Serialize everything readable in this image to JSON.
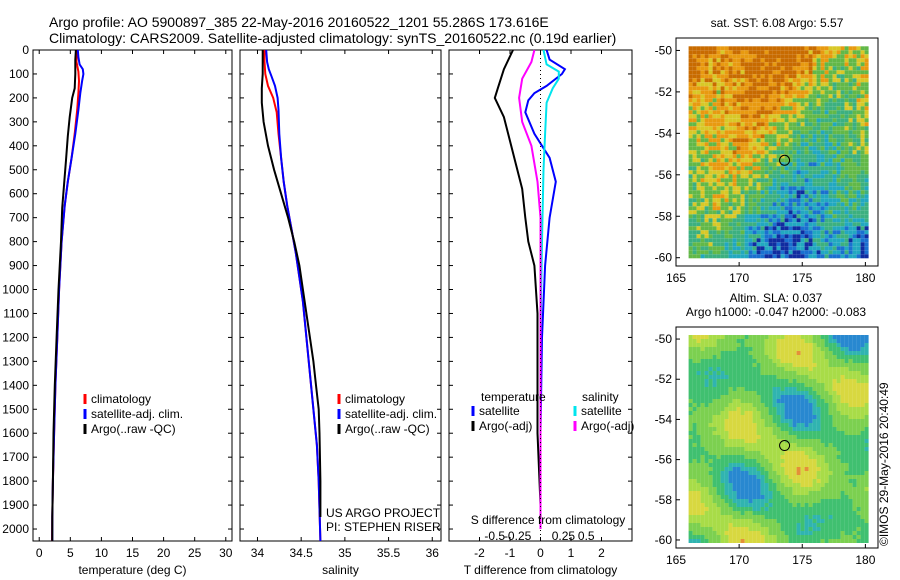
{
  "header": {
    "line1": "Argo profile: AO 5900897_385 22-May-2016 20160522_1201 55.286S 173.616E",
    "line2": "Climatology: CARS2009. Satellite-adjusted climatology: synTS_20160522.nc (0.19d earlier)"
  },
  "credit": "©IMOS 29-May-2016 20:40:49",
  "colors": {
    "climatology": "#ff0000",
    "satellite": "#0000ff",
    "argo": "#000000",
    "salinity_satellite": "#00e5ee",
    "salinity_argo": "#ff00ff"
  },
  "chart_data": [
    {
      "type": "line",
      "name": "temperature-profile",
      "xlabel": "temperature (deg C)",
      "ylabel": "",
      "xlim": [
        -1,
        31
      ],
      "ylim": [
        0,
        2050
      ],
      "y_inverted": true,
      "xticks": [
        0,
        5,
        10,
        15,
        20,
        25,
        30
      ],
      "xticklabels": [
        "0",
        "5",
        "10",
        "15",
        "20",
        "25",
        "30"
      ],
      "yticks": [
        0,
        100,
        200,
        300,
        400,
        500,
        600,
        700,
        800,
        900,
        1000,
        1100,
        1200,
        1300,
        1400,
        1500,
        1600,
        1700,
        1800,
        1900,
        2000
      ],
      "yticklabels": [
        "0",
        "100",
        "200",
        "300",
        "400",
        "500",
        "600",
        "700",
        "800",
        "900",
        "1000",
        "1100",
        "1200",
        "1300",
        "1400",
        "1500",
        "1600",
        "1700",
        "1800",
        "1900",
        "2000"
      ],
      "legend": [
        "climatology",
        "satellite-adj. clim.",
        "Argo(..raw -QC)"
      ],
      "series": [
        {
          "name": "climatology",
          "color_key": "climatology",
          "points": [
            [
              6.0,
              0
            ],
            [
              6.0,
              50
            ],
            [
              6.3,
              90
            ],
            [
              6.4,
              130
            ],
            [
              6.3,
              180
            ],
            [
              6.1,
              250
            ],
            [
              5.7,
              350
            ],
            [
              5.2,
              450
            ],
            [
              4.6,
              550
            ],
            [
              4.1,
              650
            ],
            [
              3.6,
              800
            ],
            [
              3.2,
              1000
            ],
            [
              2.9,
              1200
            ],
            [
              2.6,
              1400
            ],
            [
              2.4,
              1600
            ],
            [
              2.2,
              1800
            ],
            [
              2.1,
              1950
            ],
            [
              2.05,
              2050
            ]
          ]
        },
        {
          "name": "satellite-adj. clim.",
          "color_key": "satellite",
          "points": [
            [
              6.2,
              0
            ],
            [
              6.3,
              30
            ],
            [
              6.5,
              60
            ],
            [
              7.0,
              80
            ],
            [
              7.1,
              100
            ],
            [
              6.9,
              130
            ],
            [
              6.6,
              180
            ],
            [
              6.3,
              250
            ],
            [
              5.8,
              350
            ],
            [
              5.2,
              450
            ],
            [
              4.6,
              550
            ],
            [
              4.1,
              650
            ],
            [
              3.6,
              800
            ],
            [
              3.2,
              1000
            ],
            [
              2.9,
              1200
            ],
            [
              2.6,
              1400
            ],
            [
              2.4,
              1600
            ],
            [
              2.2,
              1800
            ],
            [
              2.1,
              1950
            ],
            [
              2.1,
              2050
            ]
          ]
        },
        {
          "name": "Argo(..raw -QC)",
          "color_key": "argo",
          "points": [
            [
              5.9,
              0
            ],
            [
              5.8,
              40
            ],
            [
              5.8,
              100
            ],
            [
              5.7,
              160
            ],
            [
              5.3,
              200
            ],
            [
              4.9,
              280
            ],
            [
              4.6,
              360
            ],
            [
              4.3,
              460
            ],
            [
              4.0,
              560
            ],
            [
              3.7,
              660
            ],
            [
              3.5,
              800
            ],
            [
              3.1,
              1000
            ],
            [
              2.8,
              1200
            ],
            [
              2.5,
              1400
            ],
            [
              2.3,
              1600
            ],
            [
              2.2,
              1800
            ],
            [
              2.1,
              1950
            ],
            [
              2.1,
              2050
            ]
          ]
        }
      ]
    },
    {
      "type": "line",
      "name": "salinity-profile",
      "xlabel": "salinity",
      "ylabel": "",
      "xlim": [
        33.8,
        36.1
      ],
      "ylim": [
        0,
        2050
      ],
      "y_inverted": true,
      "xticks": [
        34,
        34.5,
        35,
        35.5,
        36
      ],
      "xticklabels": [
        "34",
        "34.5",
        "35",
        "35.5",
        "36"
      ],
      "legend": [
        "climatology",
        "satellite-adj. clim.",
        "Argo(..raw -QC)"
      ],
      "annotations": [
        "US ARGO PROJECT",
        "PI: STEPHEN RISER"
      ],
      "series": [
        {
          "name": "climatology",
          "color_key": "climatology",
          "points": [
            [
              34.08,
              0
            ],
            [
              34.08,
              50
            ],
            [
              34.09,
              100
            ],
            [
              34.12,
              150
            ],
            [
              34.18,
              200
            ],
            [
              34.22,
              260
            ],
            [
              34.24,
              350
            ],
            [
              34.27,
              450
            ],
            [
              34.3,
              550
            ],
            [
              34.34,
              650
            ],
            [
              34.39,
              750
            ],
            [
              34.44,
              850
            ],
            [
              34.48,
              950
            ],
            [
              34.52,
              1050
            ],
            [
              34.56,
              1200
            ],
            [
              34.6,
              1350
            ],
            [
              34.64,
              1500
            ],
            [
              34.68,
              1650
            ],
            [
              34.7,
              1800
            ],
            [
              34.72,
              2050
            ]
          ]
        },
        {
          "name": "satellite-adj. clim.",
          "color_key": "satellite",
          "points": [
            [
              34.1,
              0
            ],
            [
              34.11,
              50
            ],
            [
              34.13,
              80
            ],
            [
              34.16,
              110
            ],
            [
              34.2,
              150
            ],
            [
              34.23,
              200
            ],
            [
              34.24,
              250
            ],
            [
              34.25,
              350
            ],
            [
              34.27,
              450
            ],
            [
              34.3,
              550
            ],
            [
              34.34,
              650
            ],
            [
              34.39,
              750
            ],
            [
              34.44,
              850
            ],
            [
              34.48,
              950
            ],
            [
              34.52,
              1050
            ],
            [
              34.56,
              1200
            ],
            [
              34.6,
              1350
            ],
            [
              34.64,
              1500
            ],
            [
              34.68,
              1650
            ],
            [
              34.7,
              1800
            ],
            [
              34.72,
              2050
            ]
          ]
        },
        {
          "name": "Argo(..raw -QC)",
          "color_key": "argo",
          "points": [
            [
              34.06,
              0
            ],
            [
              34.06,
              100
            ],
            [
              34.05,
              160
            ],
            [
              34.05,
              220
            ],
            [
              34.07,
              300
            ],
            [
              34.12,
              400
            ],
            [
              34.19,
              500
            ],
            [
              34.27,
              600
            ],
            [
              34.35,
              700
            ],
            [
              34.42,
              800
            ],
            [
              34.48,
              900
            ],
            [
              34.52,
              1000
            ],
            [
              34.56,
              1100
            ],
            [
              34.6,
              1200
            ],
            [
              34.64,
              1300
            ],
            [
              34.67,
              1400
            ],
            [
              34.7,
              1500
            ],
            [
              34.71,
              1600
            ],
            [
              34.72,
              1800
            ],
            [
              34.72,
              1950
            ]
          ]
        }
      ]
    },
    {
      "type": "line",
      "name": "difference-profile",
      "xlabel": "T difference from climatology",
      "xlabel_top": "S difference from climatology",
      "xlim": [
        -3.0,
        3.0
      ],
      "ylim": [
        0,
        2050
      ],
      "y_inverted": true,
      "xticks": [
        -2,
        -1,
        0,
        1,
        2
      ],
      "xticklabels": [
        "-2",
        "-1",
        "0",
        "1",
        "2"
      ],
      "xticks_s": [
        -1.5,
        -0.75,
        0.75,
        1.5
      ],
      "xticklabels_s": [
        "-0.5",
        "-0.25",
        "0.25",
        "0.5"
      ],
      "legend_temperature_title": "temperature",
      "legend_salinity_title": "salinity",
      "legend_temperature": [
        "satellite",
        "Argo(-adj)"
      ],
      "legend_salinity": [
        "satellite",
        "Argo(-adj)"
      ],
      "series": [
        {
          "name": "temperature satellite",
          "color_key": "satellite",
          "points": [
            [
              0.2,
              0
            ],
            [
              0.3,
              40
            ],
            [
              0.8,
              80
            ],
            [
              0.7,
              100
            ],
            [
              0.2,
              150
            ],
            [
              -0.2,
              180
            ],
            [
              -0.4,
              210
            ],
            [
              -0.5,
              260
            ],
            [
              -0.2,
              350
            ],
            [
              0.3,
              450
            ],
            [
              0.5,
              550
            ],
            [
              0.3,
              700
            ],
            [
              0.15,
              900
            ],
            [
              0.05,
              1200
            ],
            [
              0.0,
              1600
            ],
            [
              0.0,
              2000
            ]
          ]
        },
        {
          "name": "temperature Argo(-adj)",
          "color_key": "argo",
          "points": [
            [
              -0.9,
              0
            ],
            [
              -1.2,
              80
            ],
            [
              -1.4,
              160
            ],
            [
              -1.5,
              200
            ],
            [
              -1.2,
              280
            ],
            [
              -1.0,
              380
            ],
            [
              -0.8,
              480
            ],
            [
              -0.6,
              580
            ],
            [
              -0.5,
              700
            ],
            [
              -0.4,
              800
            ],
            [
              -0.2,
              900
            ],
            [
              -0.1,
              1100
            ],
            [
              -0.1,
              1300
            ],
            [
              -0.1,
              1600
            ],
            [
              0.0,
              1900
            ],
            [
              0.0,
              2000
            ]
          ]
        },
        {
          "name": "salinity satellite",
          "color_key": "salinity_satellite",
          "points": [
            [
              0.1,
              0
            ],
            [
              0.2,
              60
            ],
            [
              0.6,
              90
            ],
            [
              0.6,
              120
            ],
            [
              0.4,
              160
            ],
            [
              0.2,
              220
            ],
            [
              0.15,
              350
            ],
            [
              0.1,
              500
            ],
            [
              0.05,
              800
            ],
            [
              0.0,
              1200
            ],
            [
              0.0,
              2000
            ]
          ]
        },
        {
          "name": "salinity Argo(-adj)",
          "color_key": "salinity_argo",
          "points": [
            [
              -0.2,
              0
            ],
            [
              -0.3,
              50
            ],
            [
              -0.6,
              120
            ],
            [
              -0.7,
              200
            ],
            [
              -0.6,
              300
            ],
            [
              -0.3,
              400
            ],
            [
              -0.1,
              550
            ],
            [
              0.0,
              700
            ],
            [
              0.0,
              1000
            ],
            [
              0.0,
              1500
            ],
            [
              0.0,
              2000
            ]
          ]
        }
      ]
    },
    {
      "type": "heatmap",
      "name": "sst-map",
      "title": "sat. SST: 6.08 Argo: 5.57",
      "xlim": [
        165,
        181
      ],
      "ylim": [
        -60.4,
        -49.4
      ],
      "xticks": [
        165,
        170,
        175,
        180
      ],
      "xticklabels": [
        "165",
        "170",
        "175",
        "180"
      ],
      "yticks": [
        -50,
        -52,
        -54,
        -56,
        -58,
        -60
      ],
      "yticklabels": [
        "-50",
        "-52",
        "-54",
        "-56",
        "-58",
        "-60"
      ],
      "marker_lon": 173.6,
      "marker_lat": -55.3
    },
    {
      "type": "heatmap",
      "name": "sla-map",
      "title": "Altim. SLA: 0.037",
      "subtitle": "Argo h1000: -0.047 h2000: -0.083",
      "xlim": [
        165,
        181
      ],
      "ylim": [
        -60.4,
        -49.4
      ],
      "xticks": [
        165,
        170,
        175,
        180
      ],
      "xticklabels": [
        "165",
        "170",
        "175",
        "180"
      ],
      "yticks": [
        -50,
        -52,
        -54,
        -56,
        -58,
        -60
      ],
      "yticklabels": [
        "-50",
        "-52",
        "-54",
        "-56",
        "-58",
        "-60"
      ],
      "marker_lon": 173.6,
      "marker_lat": -55.3
    }
  ]
}
